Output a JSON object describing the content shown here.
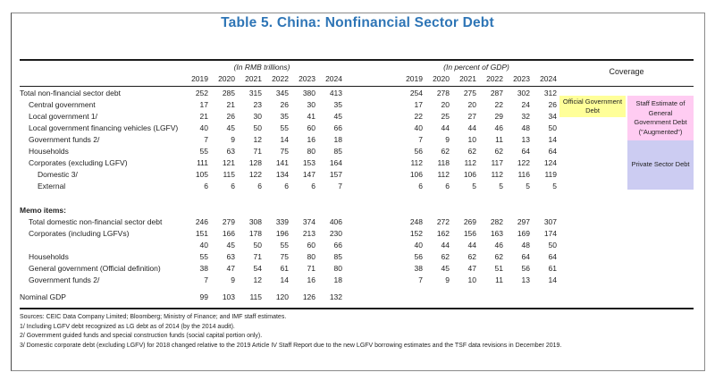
{
  "title": "Table 5. China: Nonfinancial Sector Debt",
  "accent_color": "#2E75B6",
  "header": {
    "group_rmb": "(In RMB trillions)",
    "group_gdp": "(In percent of GDP)",
    "coverage": "Coverage",
    "years": [
      "2019",
      "2020",
      "2021",
      "2022",
      "2023",
      "2024"
    ]
  },
  "table": {
    "rows": [
      {
        "label": "Total non-financial sector debt",
        "indent": 0,
        "rmb": [
          252,
          285,
          315,
          345,
          380,
          413
        ],
        "gdp": [
          254,
          278,
          275,
          287,
          302,
          312
        ]
      },
      {
        "label": "Central government",
        "indent": 1,
        "rmb": [
          17,
          21,
          23,
          26,
          30,
          35
        ],
        "gdp": [
          17,
          20,
          20,
          22,
          24,
          26
        ]
      },
      {
        "label": "Local government 1/",
        "indent": 1,
        "rmb": [
          21,
          26,
          30,
          35,
          41,
          45
        ],
        "gdp": [
          22,
          25,
          27,
          29,
          32,
          34
        ]
      },
      {
        "label": "Local government financing vehicles (LGFV)",
        "indent": 1,
        "rmb": [
          40,
          45,
          50,
          55,
          60,
          66
        ],
        "gdp": [
          40,
          44,
          44,
          46,
          48,
          50
        ]
      },
      {
        "label": "Government funds 2/",
        "indent": 1,
        "rmb": [
          7,
          9,
          12,
          14,
          16,
          18
        ],
        "gdp": [
          7,
          9,
          10,
          11,
          13,
          14
        ]
      },
      {
        "label": "Households",
        "indent": 1,
        "rmb": [
          55,
          63,
          71,
          75,
          80,
          85
        ],
        "gdp": [
          56,
          62,
          62,
          62,
          64,
          64
        ]
      },
      {
        "label": "Corporates (excluding LGFV)",
        "indent": 1,
        "rmb": [
          111,
          121,
          128,
          141,
          153,
          164
        ],
        "gdp": [
          112,
          118,
          112,
          117,
          122,
          124
        ]
      },
      {
        "label": "Domestic 3/",
        "indent": 2,
        "rmb": [
          105,
          115,
          122,
          134,
          147,
          157
        ],
        "gdp": [
          106,
          112,
          106,
          112,
          116,
          119
        ]
      },
      {
        "label": "External",
        "indent": 2,
        "rmb": [
          6,
          6,
          6,
          6,
          6,
          7
        ],
        "gdp": [
          6,
          6,
          5,
          5,
          5,
          5
        ]
      },
      {
        "spacer": 14
      },
      {
        "label": "Memo items:",
        "indent": 0,
        "bold": true,
        "rmb": null,
        "gdp": null
      },
      {
        "label": "Total domestic non-financial sector debt",
        "indent": 1,
        "rmb": [
          246,
          279,
          308,
          339,
          374,
          406
        ],
        "gdp": [
          248,
          272,
          269,
          282,
          297,
          307
        ]
      },
      {
        "label": "Corporates (including LGFVs)",
        "indent": 1,
        "rmb": [
          151,
          166,
          178,
          196,
          213,
          230
        ],
        "gdp": [
          152,
          162,
          156,
          163,
          169,
          174
        ]
      },
      {
        "label": "",
        "indent": 1,
        "rmb": [
          40,
          45,
          50,
          55,
          60,
          66
        ],
        "gdp": [
          40,
          44,
          44,
          46,
          48,
          50
        ]
      },
      {
        "label": "Households",
        "indent": 1,
        "rmb": [
          55,
          63,
          71,
          75,
          80,
          85
        ],
        "gdp": [
          56,
          62,
          62,
          62,
          64,
          64
        ]
      },
      {
        "label": "General government (Official definition)",
        "indent": 1,
        "rmb": [
          38,
          47,
          54,
          61,
          71,
          80
        ],
        "gdp": [
          38,
          45,
          47,
          51,
          56,
          61
        ]
      },
      {
        "label": "Government funds 2/",
        "indent": 1,
        "rmb": [
          7,
          9,
          12,
          14,
          16,
          18
        ],
        "gdp": [
          7,
          9,
          10,
          11,
          13,
          14
        ]
      },
      {
        "spacer": 6
      },
      {
        "label": "Nominal GDP",
        "indent": 0,
        "rmb": [
          99,
          103,
          115,
          120,
          126,
          132
        ],
        "gdp": null
      }
    ]
  },
  "coverage": {
    "official": {
      "label": "Official Government Debt",
      "color": "#FFFF99"
    },
    "augmented": {
      "label": "Staff Estimate of General Government Debt (\"Augmented\")",
      "color": "#FFCCF2"
    },
    "private": {
      "label": "Private Sector Debt",
      "color": "#CCCCF2"
    }
  },
  "footnotes": [
    "Sources: CEIC Data Company Limited; Bloomberg; Ministry of Finance; and IMF staff estimates.",
    "1/ Including LGFV debt recognized as LG debt as of 2014 (by the 2014 audit).",
    "2/ Government guided funds and special construction funds (social capital portion only).",
    "3/ Domestic corporate debt (excluding LGFV) for 2018 changed relative to the 2019 Article IV Staff Report due to the new LGFV borrowing estimates and the TSF data revisions in December 2019."
  ]
}
